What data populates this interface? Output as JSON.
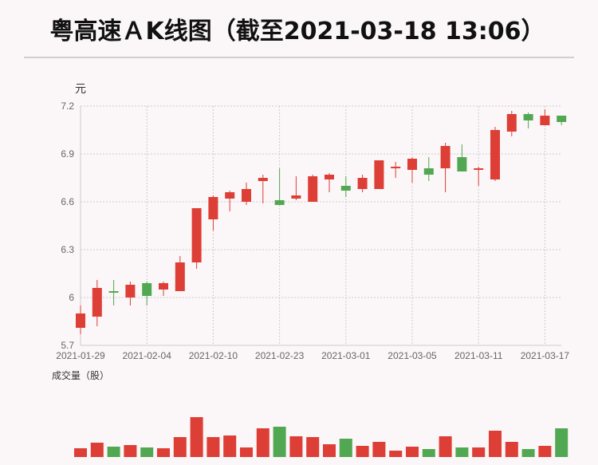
{
  "chart_data": [
    {
      "type": "candlestick",
      "title": "粤高速ＡK线图（截至2021-03-18 13:06）",
      "y_label": "元",
      "categories": [
        "2021-01-29",
        null,
        null,
        null,
        "2021-02-04",
        null,
        null,
        null,
        "2021-02-10",
        null,
        null,
        null,
        "2021-02-23",
        null,
        null,
        null,
        "2021-03-01",
        null,
        null,
        null,
        "2021-03-05",
        null,
        null,
        null,
        "2021-03-11",
        null,
        null,
        null,
        "2021-03-17",
        null
      ],
      "open": [
        5.81,
        5.88,
        6.04,
        6.0,
        6.09,
        6.05,
        6.04,
        6.22,
        6.49,
        6.62,
        6.6,
        6.73,
        6.61,
        6.62,
        6.6,
        6.74,
        6.7,
        6.68,
        6.68,
        6.81,
        6.8,
        6.81,
        6.81,
        6.88,
        6.8,
        6.74,
        7.04,
        7.15,
        7.08,
        7.14
      ],
      "high": [
        5.95,
        6.11,
        6.11,
        6.1,
        6.1,
        6.1,
        6.26,
        6.56,
        6.64,
        6.67,
        6.72,
        6.77,
        6.81,
        6.76,
        6.77,
        6.78,
        6.76,
        6.77,
        6.86,
        6.85,
        6.88,
        6.88,
        6.97,
        6.96,
        6.82,
        7.07,
        7.17,
        7.16,
        7.18,
        7.14
      ],
      "low": [
        5.77,
        5.82,
        5.95,
        5.95,
        5.95,
        6.01,
        6.04,
        6.18,
        6.42,
        6.54,
        6.58,
        6.59,
        6.58,
        6.61,
        6.6,
        6.66,
        6.63,
        6.66,
        6.68,
        6.75,
        6.72,
        6.73,
        6.66,
        6.79,
        6.7,
        6.73,
        7.01,
        7.06,
        7.08,
        7.08
      ],
      "close": [
        5.9,
        6.06,
        6.03,
        6.08,
        6.01,
        6.09,
        6.22,
        6.56,
        6.63,
        6.66,
        6.68,
        6.75,
        6.58,
        6.64,
        6.76,
        6.77,
        6.67,
        6.75,
        6.86,
        6.82,
        6.87,
        6.77,
        6.95,
        6.79,
        6.81,
        7.05,
        7.15,
        7.11,
        7.14,
        7.1
      ],
      "up_color": "#dd3e36",
      "down_color": "#52a852",
      "ylim": [
        5.7,
        7.2
      ],
      "yticks": [
        5.7,
        6,
        6.3,
        6.6,
        6.9,
        7.2
      ],
      "grid": true
    },
    {
      "type": "bar",
      "title": "成交量（股）",
      "values": [
        11,
        18,
        13,
        15,
        12,
        11,
        25,
        50,
        25,
        27,
        12,
        36,
        38,
        26,
        25,
        16,
        23,
        14,
        19,
        8,
        13,
        10,
        26,
        12,
        12,
        33,
        19,
        10,
        14,
        36
      ]
    }
  ]
}
